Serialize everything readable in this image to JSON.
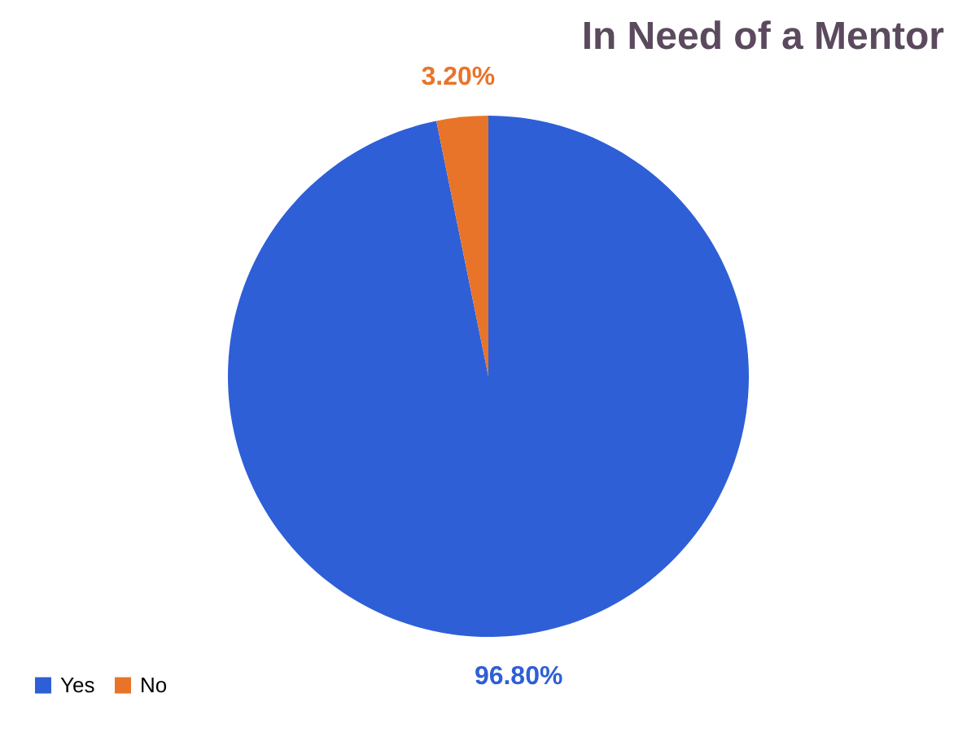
{
  "chart_data": {
    "type": "pie",
    "title": "In Need of a Mentor",
    "categories": [
      "Yes",
      "No"
    ],
    "values": [
      96.8,
      3.2
    ],
    "colors": [
      "#2e5fd6",
      "#e8742a"
    ],
    "value_labels": [
      "96.80%",
      "3.20%"
    ],
    "legend": "bottom"
  }
}
